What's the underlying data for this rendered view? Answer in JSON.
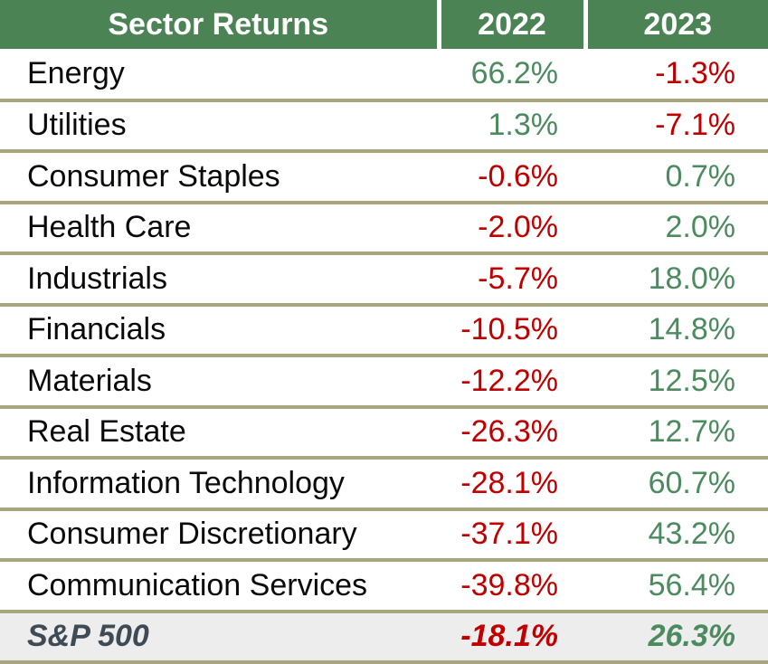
{
  "table": {
    "header": {
      "title": "Sector Returns",
      "col_2022": "2022",
      "col_2023": "2023"
    },
    "rows": [
      {
        "sector": "Energy",
        "y2022": "66.2%",
        "y2023": "-1.3%"
      },
      {
        "sector": "Utilities",
        "y2022": "1.3%",
        "y2023": "-7.1%"
      },
      {
        "sector": "Consumer Staples",
        "y2022": "-0.6%",
        "y2023": "0.7%"
      },
      {
        "sector": "Health Care",
        "y2022": "-2.0%",
        "y2023": "2.0%"
      },
      {
        "sector": "Industrials",
        "y2022": "-5.7%",
        "y2023": "18.0%"
      },
      {
        "sector": "Financials",
        "y2022": "-10.5%",
        "y2023": "14.8%"
      },
      {
        "sector": "Materials",
        "y2022": "-12.2%",
        "y2023": "12.5%"
      },
      {
        "sector": "Real Estate",
        "y2022": "-26.3%",
        "y2023": "12.7%"
      },
      {
        "sector": "Information Technology",
        "y2022": "-28.1%",
        "y2023": "60.7%"
      },
      {
        "sector": "Consumer Discretionary",
        "y2022": "-37.1%",
        "y2023": "43.2%"
      },
      {
        "sector": "Communication Services",
        "y2022": "-39.8%",
        "y2023": "56.4%"
      },
      {
        "sector": "S&P 500",
        "y2022": "-18.1%",
        "y2023": "26.3%",
        "is_total": true
      }
    ]
  },
  "colors": {
    "header_green": "#4B8355",
    "positive_green": "#4C8A5F",
    "negative_red": "#C00000",
    "divider_tan": "#A9A67E",
    "total_row_bg": "#EDEDED",
    "total_label": "#3E4A54",
    "sector_text": "#0A0A0A"
  },
  "chart_data": {
    "type": "table",
    "title": "Sector Returns",
    "columns": [
      "Sector Returns",
      "2022",
      "2023"
    ],
    "categories": [
      "Energy",
      "Utilities",
      "Consumer Staples",
      "Health Care",
      "Industrials",
      "Financials",
      "Materials",
      "Real Estate",
      "Information Technology",
      "Consumer Discretionary",
      "Communication Services",
      "S&P 500"
    ],
    "series": [
      {
        "name": "2022",
        "values": [
          66.2,
          1.3,
          -0.6,
          -2.0,
          -5.7,
          -10.5,
          -12.2,
          -26.3,
          -28.1,
          -37.1,
          -39.8,
          -18.1
        ]
      },
      {
        "name": "2023",
        "values": [
          -1.3,
          -7.1,
          0.7,
          2.0,
          18.0,
          14.8,
          12.5,
          12.7,
          60.7,
          43.2,
          56.4,
          26.3
        ]
      }
    ],
    "unit": "%",
    "notes": "S&P 500 is a bold-italic summary row on gray background; negative values rendered red, positive values rendered green; rows sorted by 2022 return descending"
  }
}
